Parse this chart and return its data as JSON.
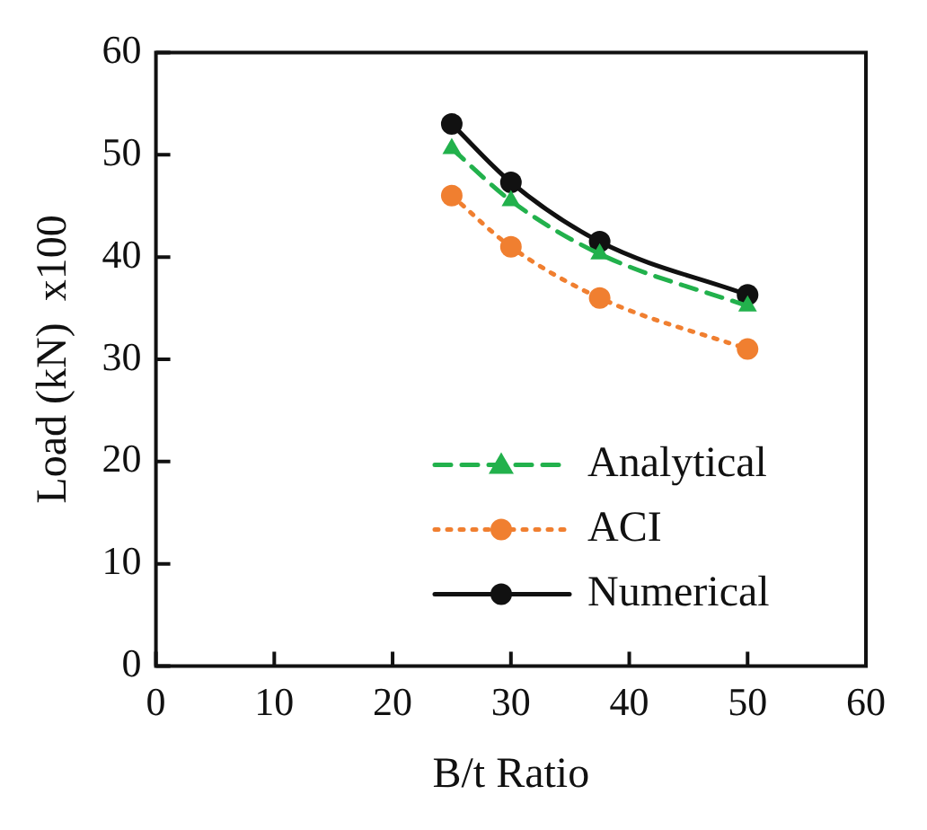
{
  "chart_data": {
    "type": "line",
    "xlabel": "B/t Ratio",
    "ylabel": "Load (kN)  x100",
    "x": [
      25,
      30,
      37.5,
      50
    ],
    "series": [
      {
        "name": "Analytical",
        "color": "#22b14c",
        "values": [
          50.6,
          45.5,
          40.3,
          35.2
        ],
        "marker": "triangle",
        "line_style": "dashed"
      },
      {
        "name": "ACI",
        "color": "#f07f30",
        "values": [
          46,
          41,
          36,
          31
        ],
        "marker": "circle",
        "line_style": "dotted"
      },
      {
        "name": "Numerical",
        "color": "#111111",
        "values": [
          53,
          47.3,
          41.5,
          36.3
        ],
        "marker": "circle",
        "line_style": "solid"
      }
    ],
    "xlim": [
      0,
      60
    ],
    "xticks": [
      0,
      10,
      20,
      30,
      40,
      50,
      60
    ],
    "ylim": [
      0,
      60
    ],
    "yticks": [
      0,
      10,
      20,
      30,
      40,
      50,
      60
    ],
    "grid": false,
    "legend": "bottom right"
  }
}
